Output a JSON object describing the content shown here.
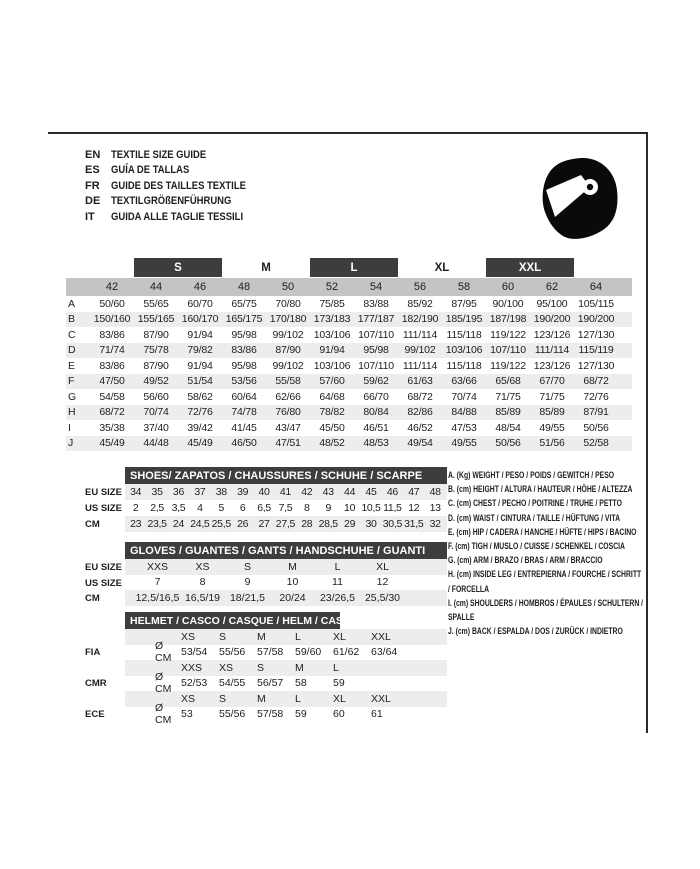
{
  "colors": {
    "bar": "#3d3d3d",
    "header_band": "#c4c4c4",
    "stripe": "#ededed",
    "text": "#1e1e1e",
    "icon": "#0a0a0a"
  },
  "header": {
    "languages": [
      {
        "code": "EN",
        "text": "TEXTILE SIZE GUIDE"
      },
      {
        "code": "ES",
        "text": "GUÍA DE TALLAS"
      },
      {
        "code": "FR",
        "text": "GUIDE DES TAILLES TEXTILE"
      },
      {
        "code": "DE",
        "text": "TEXTILGRÖßENFÜHRUNG"
      },
      {
        "code": "IT",
        "text": "GUIDA ALLE TAGLIE TESSILI"
      }
    ],
    "icon": "racing-helmet-icon"
  },
  "textile_table": {
    "size_groups": [
      {
        "label": "S",
        "highlighted": true
      },
      {
        "label": "M",
        "highlighted": false
      },
      {
        "label": "L",
        "highlighted": true
      },
      {
        "label": "XL",
        "highlighted": false
      },
      {
        "label": "XXL",
        "highlighted": true
      }
    ],
    "numeric_sizes": [
      "42",
      "44",
      "46",
      "48",
      "50",
      "52",
      "54",
      "56",
      "58",
      "60",
      "62",
      "64"
    ],
    "rows": [
      {
        "label": "A",
        "values": [
          "50/60",
          "55/65",
          "60/70",
          "65/75",
          "70/80",
          "75/85",
          "83/88",
          "85/92",
          "87/95",
          "90/100",
          "95/100",
          "105/115"
        ]
      },
      {
        "label": "B",
        "values": [
          "150/160",
          "155/165",
          "160/170",
          "165/175",
          "170/180",
          "173/183",
          "177/187",
          "182/190",
          "185/195",
          "187/198",
          "190/200",
          "190/200"
        ]
      },
      {
        "label": "C",
        "values": [
          "83/86",
          "87/90",
          "91/94",
          "95/98",
          "99/102",
          "103/106",
          "107/110",
          "111/114",
          "115/118",
          "119/122",
          "123/126",
          "127/130"
        ]
      },
      {
        "label": "D",
        "values": [
          "71/74",
          "75/78",
          "79/82",
          "83/86",
          "87/90",
          "91/94",
          "95/98",
          "99/102",
          "103/106",
          "107/110",
          "111/114",
          "115/119"
        ]
      },
      {
        "label": "E",
        "values": [
          "83/86",
          "87/90",
          "91/94",
          "95/98",
          "99/102",
          "103/106",
          "107/110",
          "111/114",
          "115/118",
          "119/122",
          "123/126",
          "127/130"
        ]
      },
      {
        "label": "F",
        "values": [
          "47/50",
          "49/52",
          "51/54",
          "53/56",
          "55/58",
          "57/60",
          "59/62",
          "61/63",
          "63/66",
          "65/68",
          "67/70",
          "68/72"
        ]
      },
      {
        "label": "G",
        "values": [
          "54/58",
          "56/60",
          "58/62",
          "60/64",
          "62/66",
          "64/68",
          "66/70",
          "68/72",
          "70/74",
          "71/75",
          "71/75",
          "72/76"
        ]
      },
      {
        "label": "H",
        "values": [
          "68/72",
          "70/74",
          "72/76",
          "74/78",
          "76/80",
          "78/82",
          "80/84",
          "82/86",
          "84/88",
          "85/89",
          "85/89",
          "87/91"
        ]
      },
      {
        "label": "I",
        "values": [
          "35/38",
          "37/40",
          "39/42",
          "41/45",
          "43/47",
          "45/50",
          "46/51",
          "46/52",
          "47/53",
          "48/54",
          "49/55",
          "50/56"
        ]
      },
      {
        "label": "J",
        "values": [
          "45/49",
          "44/48",
          "45/49",
          "46/50",
          "47/51",
          "48/52",
          "48/53",
          "49/54",
          "49/55",
          "50/56",
          "51/56",
          "52/58"
        ]
      }
    ]
  },
  "shoes_table": {
    "title": "SHOES/ ZAPATOS / CHAUSSURES / SCHUHE / SCARPE",
    "rows": [
      {
        "label": "EU SIZE",
        "values": [
          "34",
          "35",
          "36",
          "37",
          "38",
          "39",
          "40",
          "41",
          "42",
          "43",
          "44",
          "45",
          "46",
          "47",
          "48"
        ]
      },
      {
        "label": "US SIZE",
        "values": [
          "2",
          "2,5",
          "3,5",
          "4",
          "5",
          "6",
          "6,5",
          "7,5",
          "8",
          "9",
          "10",
          "10,5",
          "11,5",
          "12",
          "13"
        ]
      },
      {
        "label": "CM",
        "values": [
          "23",
          "23,5",
          "24",
          "24,5",
          "25,5",
          "26",
          "27",
          "27,5",
          "28",
          "28,5",
          "29",
          "30",
          "30,5",
          "31,5",
          "32"
        ]
      }
    ]
  },
  "gloves_table": {
    "title": "GLOVES / GUANTES / GANTS / HANDSCHUHE / GUANTI",
    "rows": [
      {
        "label": "EU SIZE",
        "values": [
          "XXS",
          "XS",
          "S",
          "M",
          "L",
          "XL"
        ]
      },
      {
        "label": "US SIZE",
        "values": [
          "7",
          "8",
          "9",
          "10",
          "11",
          "12"
        ]
      },
      {
        "label": "CM",
        "values": [
          "12,5/16,5",
          "16,5/19",
          "18/21,5",
          "20/24",
          "23/26,5",
          "25,5/30"
        ]
      }
    ]
  },
  "helmet_table": {
    "title": "HELMET / CASCO / CASQUE / HELM / CASCO",
    "sections": [
      {
        "label": "FIA",
        "unit": "Ø CM",
        "sizes": [
          "XS",
          "S",
          "M",
          "L",
          "XL",
          "XXL"
        ],
        "values": [
          "53/54",
          "55/56",
          "57/58",
          "59/60",
          "61/62",
          "63/64"
        ]
      },
      {
        "label": "CMR",
        "unit": "Ø CM",
        "sizes": [
          "XXS",
          "XS",
          "S",
          "M",
          "L"
        ],
        "values": [
          "52/53",
          "54/55",
          "56/57",
          "58",
          "59"
        ]
      },
      {
        "label": "ECE",
        "unit": "Ø CM",
        "sizes": [
          "XS",
          "S",
          "M",
          "L",
          "XL",
          "XXL"
        ],
        "values": [
          "53",
          "55/56",
          "57/58",
          "59",
          "60",
          "61"
        ]
      }
    ]
  },
  "legend": {
    "items": [
      "A. (Kg) WEIGHT / PESO / POIDS / GEWITCH / PESO",
      "B. (cm) HEIGHT / ALTURA / HAUTEUR / HÖHE / ALTEZZA",
      "C. (cm) CHEST / PECHO / POITRINE / TRUHE / PETTO",
      "D. (cm) WAIST / CINTURA / TAILLE / HÜFTUNG / VITA",
      "E. (cm) HIP / CADERA / HANCHE / HÜFTE / HIPS / BACINO",
      "F. (cm) TIGH / MUSLO / CUISSE / SCHENKEL / COSCIA",
      "G. (cm) ARM / BRAZO / BRAS / ARM / BRACCIO",
      "H. (cm) INSIDE LEG / ENTREPIERNA / FOURCHE / SCHRITT / FORCELLA",
      "I. (cm) SHOULDERS / HOMBROS / ÉPAULES / SCHULTERN / SPALLE",
      "J. (cm) BACK / ESPALDA / DOS / ZURÜCK / INDIETRO"
    ]
  }
}
